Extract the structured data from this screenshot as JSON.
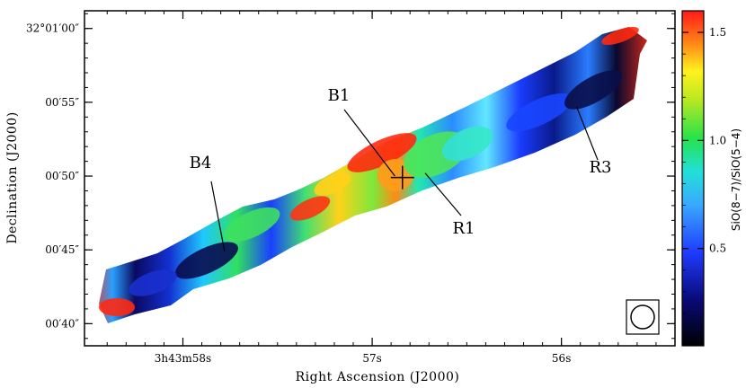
{
  "chart_data": {
    "type": "heatmap",
    "xlabel": "Right Ascension (J2000)",
    "ylabel": "Declination (J2000)",
    "colorbar_label": "SiO(8−7)/SiO(5−4)",
    "x_ticks": [
      {
        "value": 58,
        "label": "3h43m58s"
      },
      {
        "value": 57,
        "label": "57s"
      },
      {
        "value": 56,
        "label": "56s"
      }
    ],
    "y_ticks": [
      {
        "value": 60,
        "label": "32°01′00″"
      },
      {
        "value": 55,
        "label": "00′55″"
      },
      {
        "value": 50,
        "label": "00′50″"
      },
      {
        "value": 45,
        "label": "00′45″"
      },
      {
        "value": 40,
        "label": "00′40″"
      }
    ],
    "colorbar_ticks": [
      0.5,
      1.0,
      1.5
    ],
    "colorbar_range": [
      0.05,
      1.6
    ],
    "colormap": "rainbow",
    "annotations": [
      "B1",
      "B4",
      "R1",
      "R3"
    ],
    "jet_axis": {
      "ra_start": 58.52,
      "dec_start": 39.2,
      "ra_end": 55.7,
      "dec_end": 60.8
    },
    "features": [
      {
        "label": "B1",
        "ra": 56.88,
        "dec": 50.0
      },
      {
        "label": "B4",
        "ra": 57.78,
        "dec": 44.9
      },
      {
        "label": "R1",
        "ra": 56.72,
        "dec": 50.2
      },
      {
        "label": "R3",
        "ra": 55.92,
        "dec": 54.7
      }
    ],
    "source_marker": {
      "ra": 56.84,
      "dec": 49.9,
      "symbol": "cross"
    },
    "beam": {
      "shape": "circle"
    }
  }
}
